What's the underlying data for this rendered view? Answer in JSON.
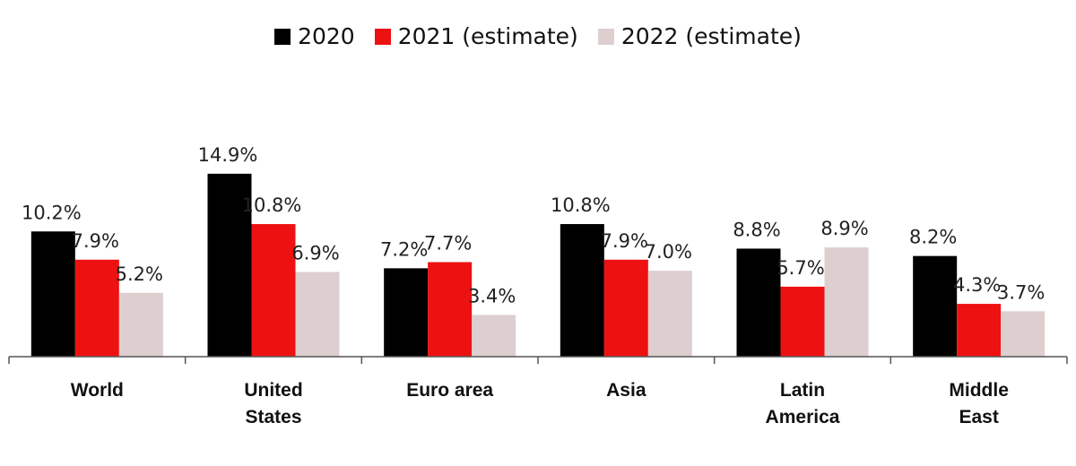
{
  "chart_data": {
    "type": "bar",
    "categories": [
      [
        "World"
      ],
      [
        "United",
        "States"
      ],
      [
        "Euro area"
      ],
      [
        "Asia"
      ],
      [
        "Latin",
        "America"
      ],
      [
        "Middle",
        "East"
      ]
    ],
    "series": [
      {
        "name": "2020",
        "color": "#000000",
        "values": [
          10.2,
          14.9,
          7.2,
          10.8,
          8.8,
          8.2
        ],
        "labels": [
          "10.2%",
          "14.9%",
          "7.2%",
          "10.8%",
          "8.8%",
          "8.2%"
        ]
      },
      {
        "name": "2021 (estimate)",
        "color": "#EE1111",
        "values": [
          7.9,
          10.8,
          7.7,
          7.9,
          5.7,
          4.3
        ],
        "labels": [
          "7.9%",
          "10.8%",
          "7.7%",
          "7.9%",
          "5.7%",
          "4.3%"
        ]
      },
      {
        "name": "2022 (estimate)",
        "color": "#DDCFCF",
        "values": [
          5.2,
          6.9,
          3.4,
          7.0,
          8.9,
          3.7
        ],
        "labels": [
          "5.2%",
          "6.9%",
          "3.4%",
          "7.0%",
          "8.9%",
          "3.7%"
        ]
      }
    ],
    "ylim": [
      0,
      16
    ],
    "grid": false,
    "legend": "top-center"
  }
}
